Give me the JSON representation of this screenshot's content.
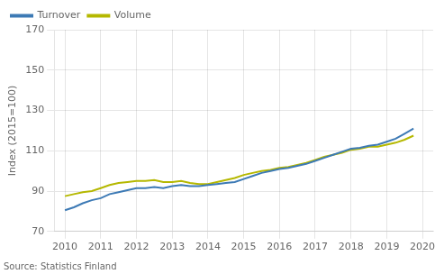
{
  "chart_data": {
    "type": "line",
    "y_label": "Index (2015=100)",
    "annotations": [
      "Source: Statistics Finland"
    ],
    "x": [
      2010.0,
      2010.25,
      2010.5,
      2010.75,
      2011.0,
      2011.25,
      2011.5,
      2011.75,
      2012.0,
      2012.25,
      2012.5,
      2012.75,
      2013.0,
      2013.25,
      2013.5,
      2013.75,
      2014.0,
      2014.25,
      2014.5,
      2014.75,
      2015.0,
      2015.25,
      2015.5,
      2015.75,
      2016.0,
      2016.25,
      2016.5,
      2016.75,
      2017.0,
      2017.25,
      2017.5,
      2017.75,
      2018.0,
      2018.25,
      2018.5,
      2018.75,
      2019.0,
      2019.25,
      2019.5,
      2019.75
    ],
    "series": [
      {
        "name": "Turnover",
        "color": "#3d7ab5",
        "values": [
          80.5,
          82.0,
          84.0,
          85.5,
          86.5,
          88.5,
          89.5,
          90.5,
          91.5,
          91.5,
          92.0,
          91.5,
          92.5,
          93.0,
          92.5,
          92.5,
          93.0,
          93.5,
          94.0,
          94.5,
          96.0,
          97.5,
          99.0,
          100.0,
          101.0,
          101.5,
          102.5,
          103.5,
          105.0,
          106.5,
          108.0,
          109.5,
          111.0,
          111.5,
          112.5,
          113.0,
          114.5,
          116.0,
          118.5,
          121.0
        ]
      },
      {
        "name": "Volume",
        "color": "#b5b800",
        "values": [
          87.5,
          88.5,
          89.5,
          90.0,
          91.5,
          93.0,
          94.0,
          94.5,
          95.0,
          95.0,
          95.5,
          94.5,
          94.5,
          95.0,
          94.0,
          93.5,
          93.5,
          94.5,
          95.5,
          96.5,
          98.0,
          99.0,
          100.0,
          100.5,
          101.5,
          102.0,
          103.0,
          104.0,
          105.5,
          107.0,
          108.0,
          109.0,
          110.5,
          111.0,
          112.0,
          112.0,
          113.0,
          114.0,
          115.5,
          117.5
        ]
      }
    ],
    "xlim": [
      2009.7,
      2020.3
    ],
    "ylim": [
      70,
      170
    ],
    "xticks": [
      2010,
      2011,
      2012,
      2013,
      2014,
      2015,
      2016,
      2017,
      2018,
      2019,
      2020
    ],
    "yticks": [
      70,
      90,
      110,
      130,
      150,
      170
    ],
    "grid": true,
    "legend": "upper left"
  }
}
